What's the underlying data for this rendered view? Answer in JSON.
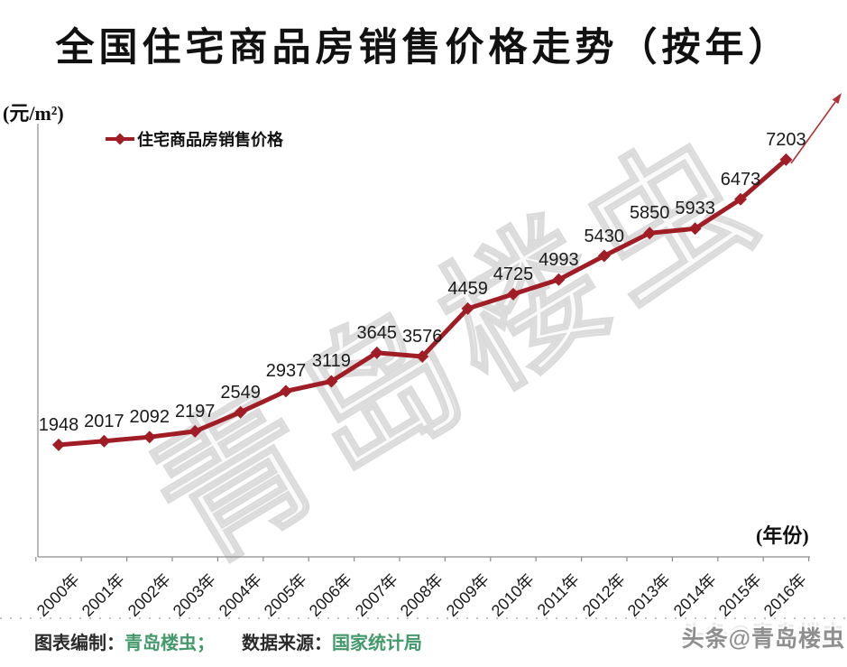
{
  "title": "全国住宅商品房销售价格走势（按年）",
  "axes": {
    "y_unit_label": "(元/m²)",
    "x_unit_label": "(年份)"
  },
  "legend": {
    "series_label": "住宅商品房销售价格"
  },
  "chart_data": {
    "type": "line",
    "title": "全国住宅商品房销售价格走势（按年）",
    "categories": [
      "2000年",
      "2001年",
      "2002年",
      "2003年",
      "2004年",
      "2005年",
      "2006年",
      "2007年",
      "2008年",
      "2009年",
      "2010年",
      "2011年",
      "2012年",
      "2013年",
      "2014年",
      "2015年",
      "2016年"
    ],
    "series": [
      {
        "name": "住宅商品房销售价格",
        "values": [
          1948,
          2017,
          2092,
          2197,
          2549,
          2937,
          3119,
          3645,
          3576,
          4459,
          4725,
          4993,
          5430,
          5850,
          5933,
          6473,
          7203
        ]
      }
    ],
    "xlabel": "(年份)",
    "ylabel": "(元/m²)",
    "ylim": [
      0,
      8000
    ],
    "grid": false,
    "legend_position": "top-left",
    "marker": "diamond",
    "data_labels": true,
    "annotations": [
      "upward trend arrow at top right"
    ]
  },
  "footer": {
    "made_by_label": "图表编制：",
    "made_by_value": "青岛楼虫；",
    "source_label": "数据来源：",
    "source_value": "国家统计局"
  },
  "watermarks": {
    "center": "青岛楼虫",
    "corner": "头条@青岛楼虫"
  },
  "colors": {
    "line": "#A01D26",
    "arrow": "#B03036",
    "credit_green": "#44996B",
    "watermark": "#DBDBDB",
    "text": "#1A1A1A",
    "axis": "#8C8C8C"
  }
}
